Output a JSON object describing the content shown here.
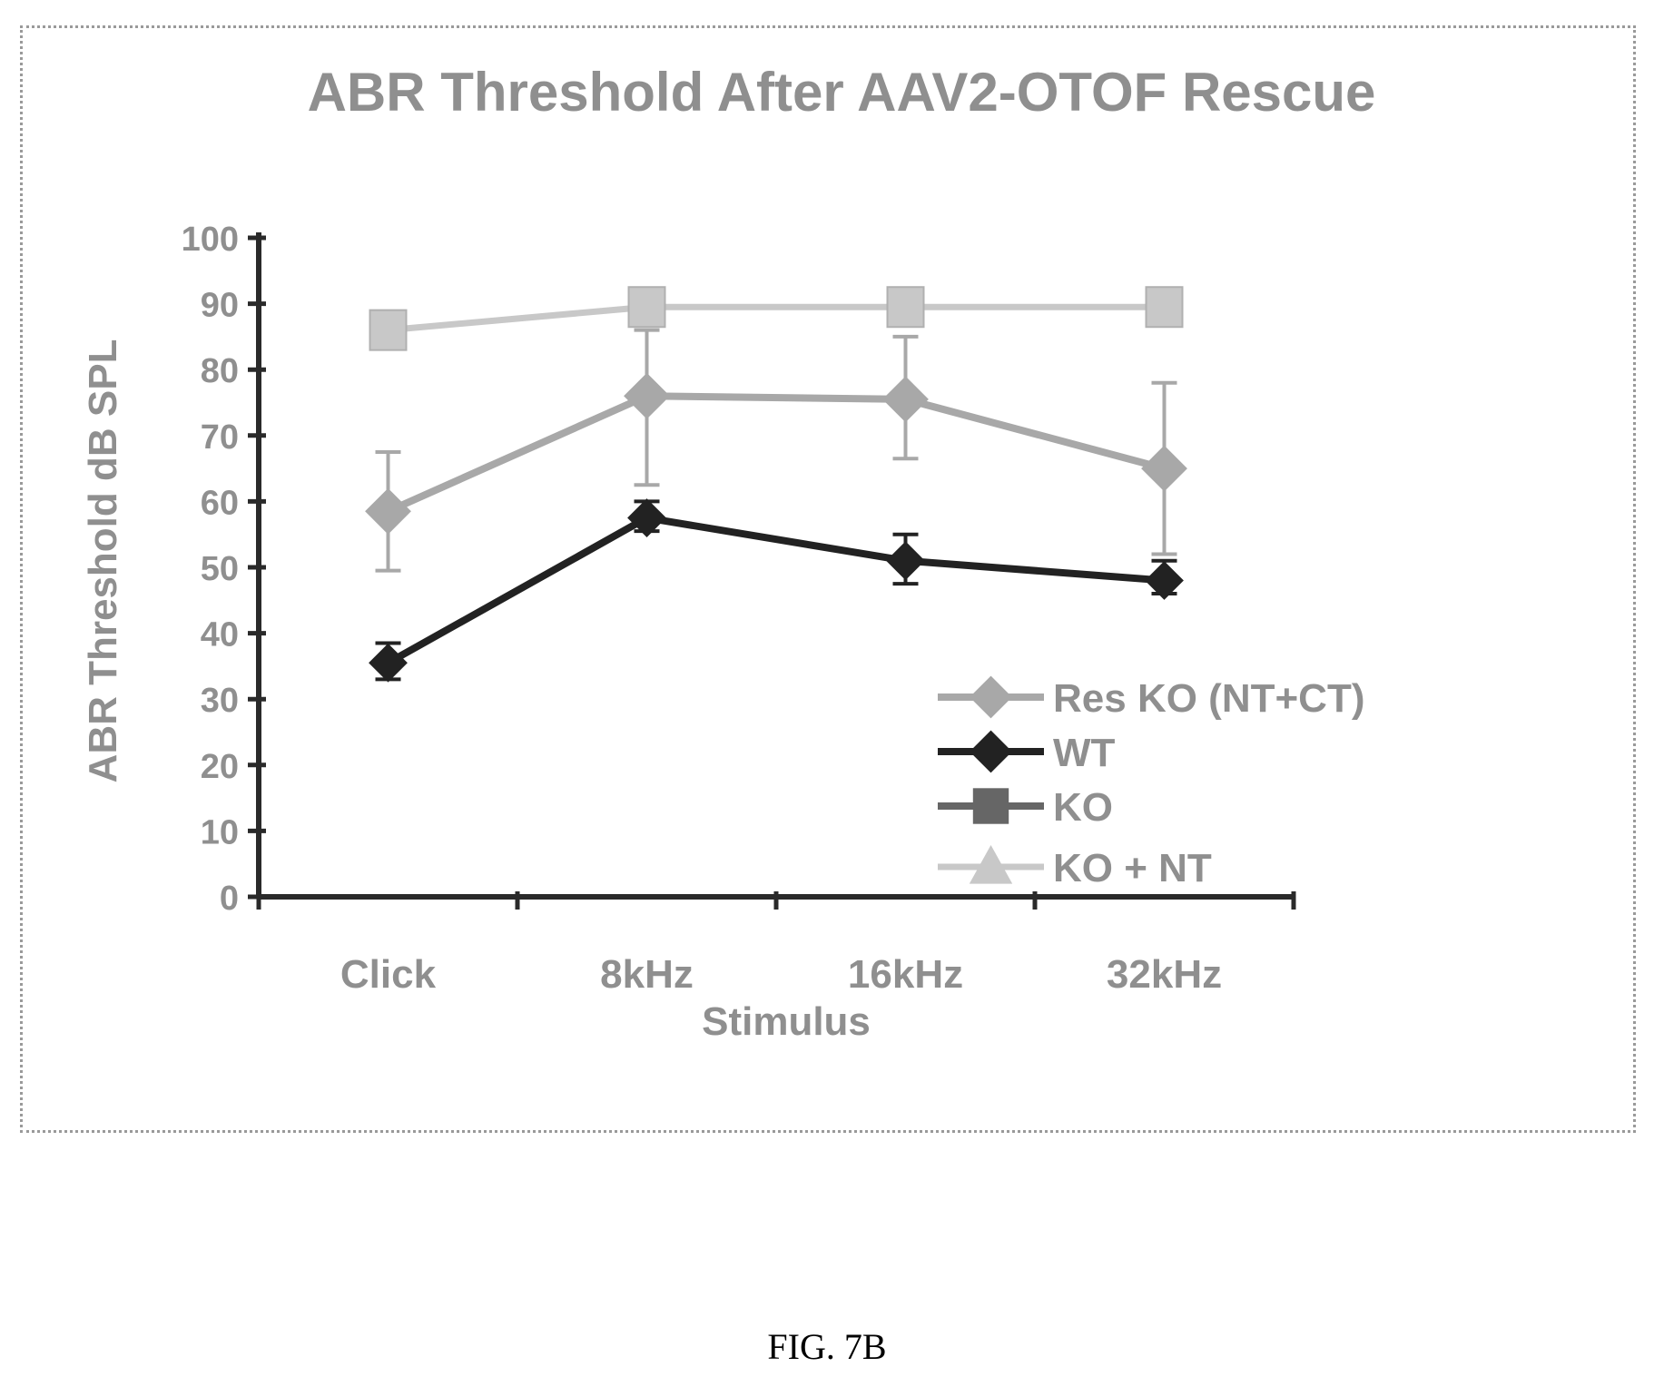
{
  "figure_caption": "FIG. 7B",
  "chart_data": {
    "type": "line",
    "title": "ABR Threshold After AAV2-OTOF Rescue",
    "xlabel": "Stimulus",
    "ylabel": "ABR Threshold dB SPL",
    "categories": [
      "Click",
      "8kHz",
      "16kHz",
      "32kHz"
    ],
    "ylim": [
      0,
      100
    ],
    "yticks": [
      0,
      10,
      20,
      30,
      40,
      50,
      60,
      70,
      80,
      90,
      100
    ],
    "grid": false,
    "legend_position": "right",
    "series": [
      {
        "name": "Res KO (NT+CT)",
        "marker": "diamond",
        "color": "#a8a8a8",
        "values": [
          58.5,
          76,
          75.5,
          65
        ],
        "err_low": [
          49.5,
          62.5,
          66.5,
          52
        ],
        "err_high": [
          67.5,
          86,
          85,
          78
        ]
      },
      {
        "name": "WT",
        "marker": "diamond",
        "color": "#222222",
        "values": [
          35.5,
          57.5,
          51,
          48
        ],
        "err_low": [
          33,
          55.5,
          47.5,
          46
        ],
        "err_high": [
          38.5,
          60,
          55,
          51
        ]
      },
      {
        "name": "KO",
        "marker": "square",
        "color": "#666666",
        "values": [
          null,
          null,
          null,
          null
        ]
      },
      {
        "name": "KO + NT",
        "marker": "triangle",
        "color": "#c8c8c8",
        "values": [
          86,
          89.5,
          89.5,
          89.5
        ]
      }
    ]
  }
}
